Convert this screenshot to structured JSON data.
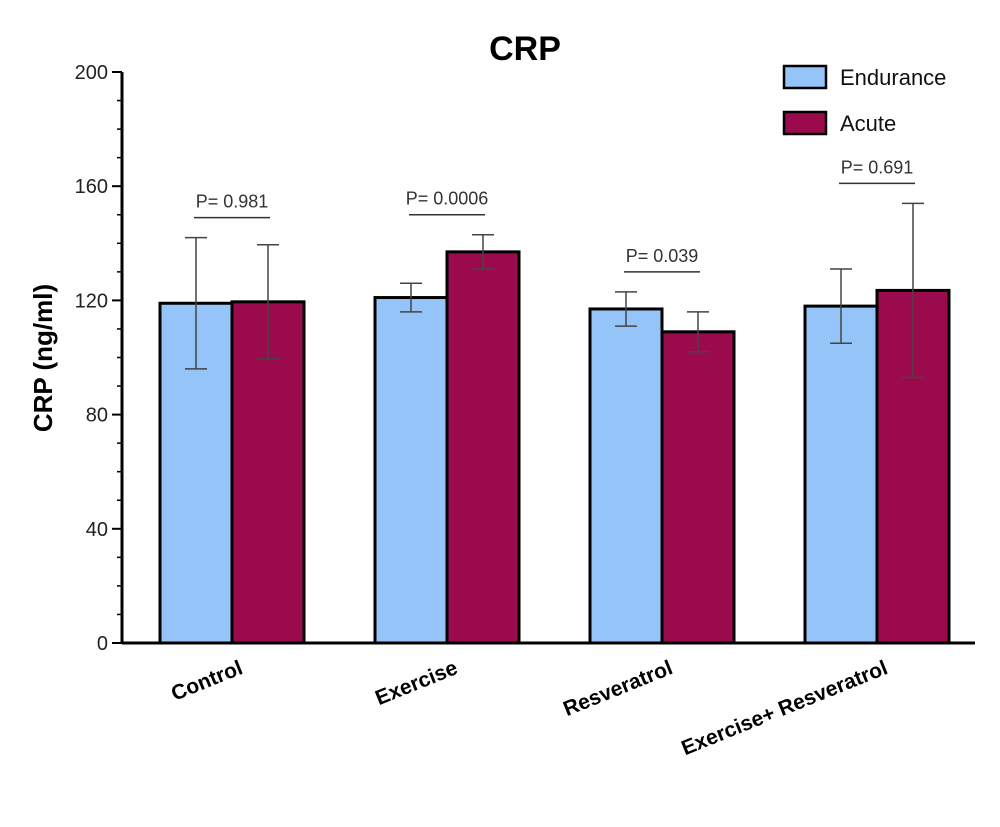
{
  "chart_data": {
    "type": "bar",
    "title": "CRP",
    "ylabel": "CRP  (ng/ml)",
    "xlabel": "",
    "ylim": [
      0,
      200
    ],
    "yticks": [
      0,
      40,
      80,
      120,
      160,
      200
    ],
    "categories": [
      "Control",
      "Exercise",
      "Resveratrol",
      "Exercise+ Resveratrol"
    ],
    "series": [
      {
        "name": "Endurance",
        "color": "#95C4F8",
        "values": [
          119,
          121,
          117,
          118
        ],
        "errors": [
          23,
          5,
          6,
          13
        ]
      },
      {
        "name": "Acute",
        "color": "#9C0A4E",
        "values": [
          119.5,
          137,
          109,
          123.5
        ],
        "errors": [
          20,
          6,
          7,
          30.5
        ]
      }
    ],
    "pvalues": [
      "P= 0.981",
      "P= 0.0006",
      "P= 0.039",
      "P= 0.691"
    ],
    "legend_position": "top-right",
    "grid": false
  }
}
